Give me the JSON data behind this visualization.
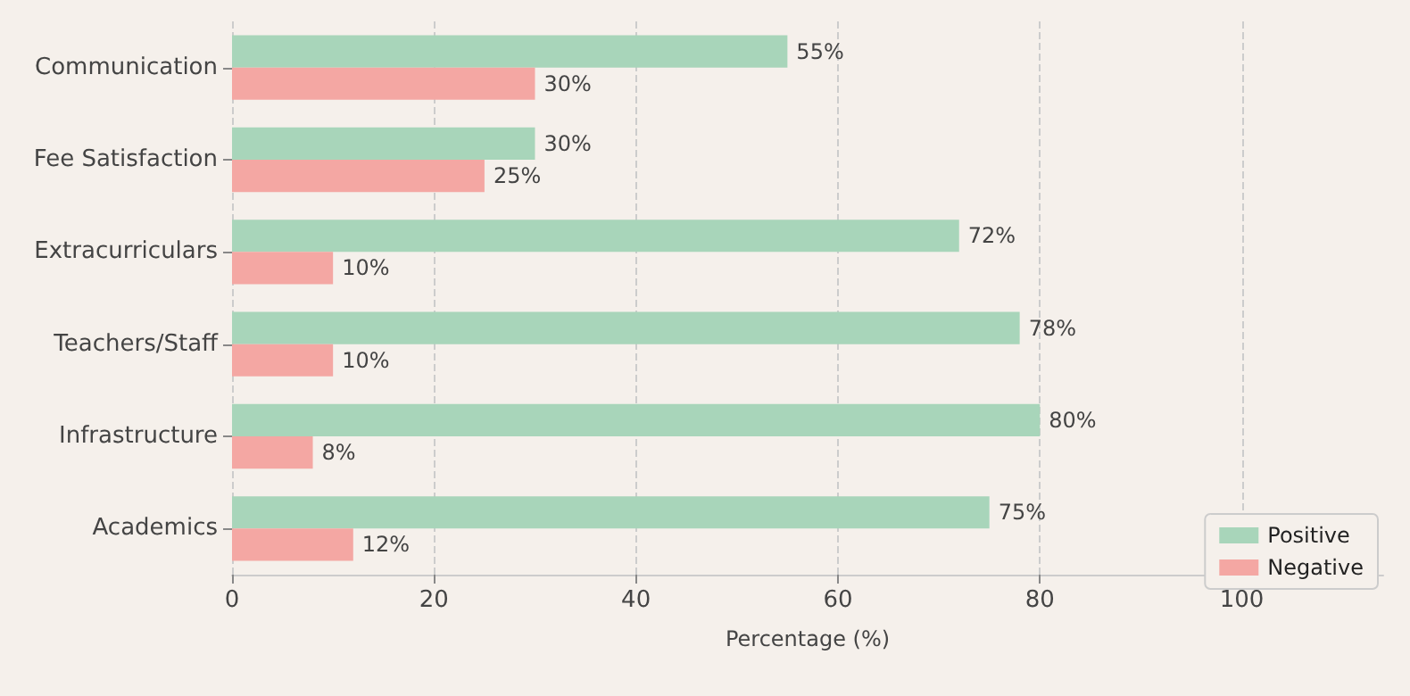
{
  "chart_data": {
    "type": "bar",
    "orientation": "horizontal",
    "xlabel": "Percentage (%)",
    "categories": [
      "Communication",
      "Fee Satisfaction",
      "Extracurriculars",
      "Teachers/Staff",
      "Infrastructure",
      "Academics"
    ],
    "series": [
      {
        "name": "Positive",
        "color": "#a8d5ba",
        "values": [
          55,
          30,
          72,
          78,
          80,
          75
        ],
        "value_labels": [
          "55%",
          "30%",
          "72%",
          "78%",
          "80%",
          "75%"
        ]
      },
      {
        "name": "Negative",
        "color": "#f4a7a3",
        "values": [
          30,
          25,
          10,
          10,
          8,
          12
        ],
        "value_labels": [
          "30%",
          "25%",
          "10%",
          "10%",
          "8%",
          "12%"
        ]
      }
    ],
    "xlim": [
      0,
      114
    ],
    "xticks": [
      0,
      20,
      40,
      60,
      80,
      100
    ],
    "grid": "x",
    "legend": "bottom right"
  }
}
